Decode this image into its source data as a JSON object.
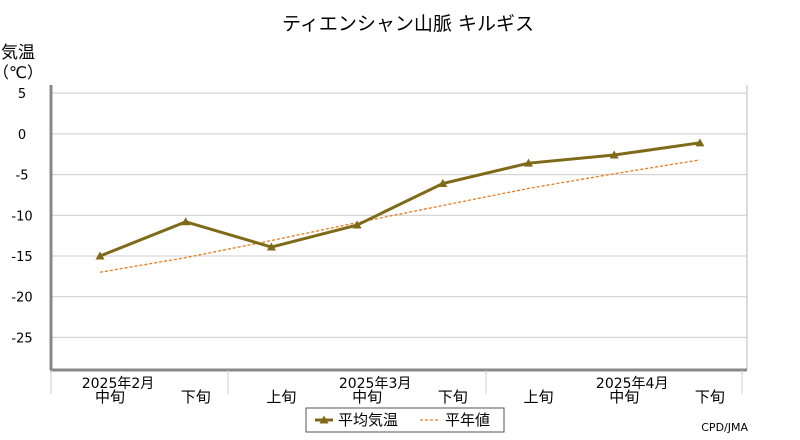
{
  "chart_data": {
    "type": "line",
    "title": "ティエンシャン山脈 キルギス",
    "ylabel_line1": "気温",
    "ylabel_line2": "（℃）",
    "ylim": [
      -29,
      6
    ],
    "yticks": [
      5,
      0,
      -5,
      -10,
      -15,
      -20,
      -25
    ],
    "ytick_labels": [
      "5",
      "0",
      "-5",
      "-10",
      "-15",
      "-20",
      "-25"
    ],
    "grid": true,
    "categories": [
      "中旬",
      "下旬",
      "上旬",
      "中旬",
      "下旬",
      "上旬",
      "中旬",
      "下旬"
    ],
    "month_labels": [
      {
        "label": "2025年2月",
        "at": 0
      },
      {
        "label": "2025年3月",
        "at": 3
      },
      {
        "label": "2025年4月",
        "at": 6
      }
    ],
    "series": [
      {
        "name": "平均気温",
        "values": [
          -15.0,
          -10.8,
          -13.9,
          -11.2,
          -6.1,
          -3.6,
          -2.6,
          -1.1
        ],
        "color": "#7f6a1a",
        "style": "solid-triangle"
      },
      {
        "name": "平年値",
        "values": [
          -17.0,
          -15.2,
          -13.1,
          -10.9,
          -8.8,
          -6.7,
          -4.9,
          -3.2
        ],
        "color": "#e87a1e",
        "style": "dashed"
      }
    ],
    "legend_position": "bottom-center",
    "credit": "CPD/JMA"
  }
}
